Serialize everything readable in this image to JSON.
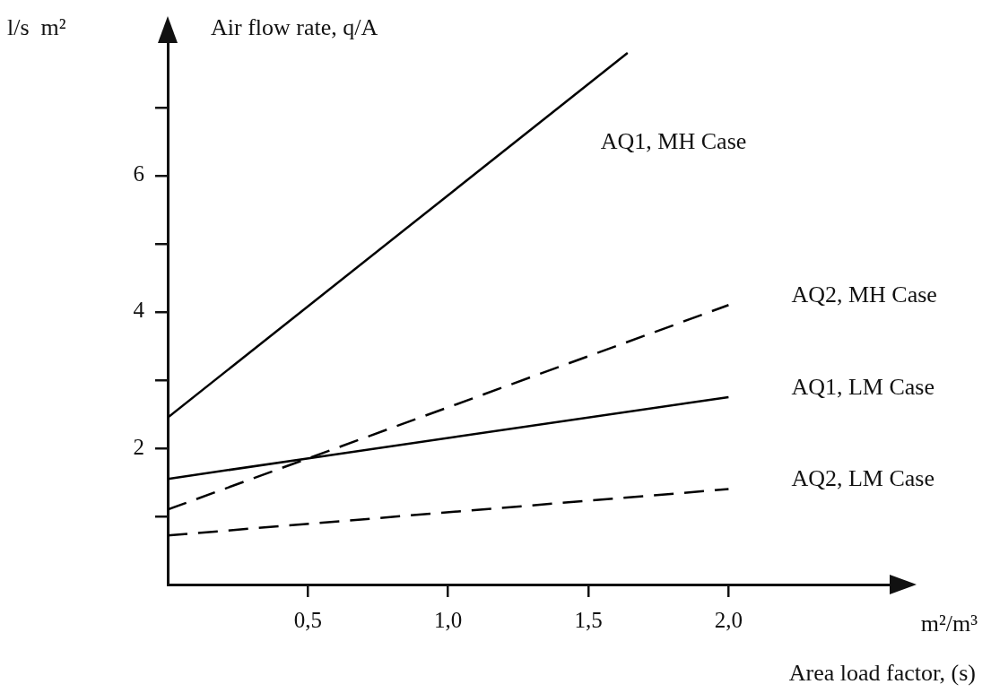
{
  "chart_data": {
    "type": "line",
    "xlabel": "Area load factor, (s)",
    "ylabel": "Air flow rate, q/A",
    "annotations": [
      "l/s  m²",
      "m²/m³"
    ],
    "series": [
      {
        "name": "AQ1, MH Case",
        "color": "#000000",
        "x": [
          0,
          1.64
        ],
        "values": [
          2.45,
          7.8
        ],
        "line_style": "solid"
      },
      {
        "name": "AQ2, MH Case",
        "color": "#000000",
        "x": [
          0,
          2
        ],
        "values": [
          1.1,
          4.1
        ],
        "line_style": "dashed"
      },
      {
        "name": "AQ1, LM Case",
        "color": "#000000",
        "x": [
          0,
          2
        ],
        "values": [
          1.55,
          2.75
        ],
        "line_style": "solid"
      },
      {
        "name": "AQ2, LM Case",
        "color": "#000000",
        "x": [
          0,
          2
        ],
        "values": [
          0.72,
          1.4
        ],
        "line_style": "dashed"
      }
    ],
    "xlim": [
      0,
      2.6
    ],
    "ylim": [
      0,
      8.05
    ],
    "xticks": [
      {
        "value": 0.5,
        "label": "0,5"
      },
      {
        "value": 1,
        "label": "1,0"
      },
      {
        "value": 1.5,
        "label": "1,5"
      },
      {
        "value": 2,
        "label": "2,0"
      }
    ],
    "yticks": [
      {
        "value": 1,
        "label": null
      },
      2,
      {
        "value": 3,
        "label": null
      },
      4,
      {
        "value": 5,
        "label": null
      },
      6,
      {
        "value": 7,
        "label": null
      }
    ],
    "grid": false,
    "legend": false,
    "marker": "none"
  }
}
